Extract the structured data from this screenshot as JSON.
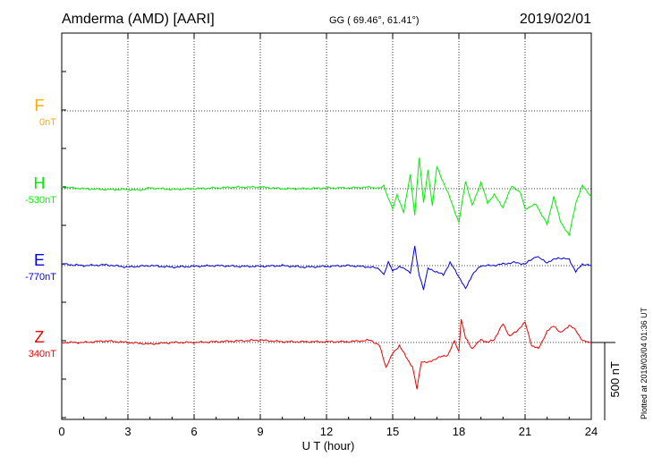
{
  "header": {
    "station": "Amderma (AMD)  [AARI]",
    "coords": "GG ( 69.46°,  61.41°)",
    "date": "2019/02/01"
  },
  "side_note": "Plotted at 2019/03/04 01:36 UT",
  "chart_data": {
    "type": "line",
    "title": "Amderma (AMD)  [AARI]",
    "xlabel": "U T (hour)",
    "xlim": [
      0,
      24
    ],
    "xticks": [
      "0",
      "3",
      "6",
      "9",
      "12",
      "15",
      "18",
      "21",
      "24"
    ],
    "scale_bar_label": "500 nT",
    "scale_bar_nT": 500,
    "grid": true,
    "colors": {
      "F": "#ffaa00",
      "H": "#00ee00",
      "E": "#0000dd",
      "Z": "#ee0000"
    },
    "series": [
      {
        "name": "F",
        "baseline": "0nT",
        "x": [],
        "values": []
      },
      {
        "name": "H",
        "baseline": "-530nT",
        "x": [
          0,
          1,
          2,
          3,
          3.5,
          4,
          5,
          6,
          7,
          8,
          9,
          10,
          11,
          12,
          13,
          14,
          14.4,
          14.6,
          14.8,
          15,
          15.2,
          15.5,
          15.8,
          16,
          16.2,
          16.4,
          16.6,
          16.8,
          17,
          17.3,
          17.6,
          18,
          18.3,
          18.6,
          19,
          19.3,
          19.6,
          20,
          20.4,
          20.8,
          21,
          21.5,
          22,
          22.3,
          22.6,
          23,
          23.3,
          23.6,
          24
        ],
        "values": [
          10,
          0,
          -5,
          -5,
          -10,
          5,
          -5,
          0,
          5,
          10,
          10,
          0,
          0,
          5,
          5,
          10,
          0,
          20,
          -60,
          -130,
          -40,
          -150,
          90,
          -170,
          200,
          -90,
          120,
          -110,
          140,
          40,
          -60,
          -220,
          50,
          -110,
          40,
          -90,
          -40,
          -120,
          20,
          -30,
          -130,
          -100,
          -230,
          -50,
          -210,
          -300,
          -90,
          20,
          -50
        ]
      },
      {
        "name": "E",
        "baseline": "-770nT",
        "x": [
          0,
          1,
          2,
          3,
          4,
          5,
          6,
          7,
          8,
          9,
          10,
          11,
          12,
          13,
          14,
          14.4,
          14.6,
          14.8,
          15,
          15.3,
          15.6,
          15.8,
          16,
          16.2,
          16.4,
          16.6,
          17,
          17.3,
          17.6,
          18,
          18.3,
          18.6,
          19,
          19.5,
          20,
          20.5,
          21,
          21.5,
          22,
          22.5,
          23,
          23.3,
          23.6,
          24
        ],
        "values": [
          10,
          0,
          5,
          -10,
          0,
          -10,
          -5,
          0,
          -5,
          -5,
          0,
          -10,
          -5,
          0,
          -10,
          -20,
          -60,
          20,
          -30,
          -10,
          -20,
          -50,
          120,
          -60,
          -150,
          -20,
          -40,
          -60,
          20,
          -70,
          -150,
          -60,
          0,
          0,
          10,
          20,
          10,
          60,
          20,
          50,
          40,
          -40,
          10,
          0
        ]
      },
      {
        "name": "Z",
        "baseline": "340nT",
        "x": [
          0,
          1,
          2,
          3,
          4,
          5,
          6,
          7,
          8,
          9,
          10,
          11,
          12,
          13,
          14,
          14.4,
          14.7,
          15,
          15.3,
          15.6,
          15.9,
          16.1,
          16.3,
          16.6,
          17,
          17.5,
          17.8,
          18,
          18.1,
          18.3,
          18.6,
          19,
          19.3,
          19.6,
          20,
          20.3,
          20.6,
          21,
          21.3,
          21.6,
          22,
          22.3,
          22.6,
          23,
          23.3,
          23.6,
          24
        ],
        "values": [
          0,
          0,
          10,
          0,
          -10,
          0,
          0,
          5,
          10,
          15,
          5,
          5,
          5,
          5,
          15,
          -20,
          -160,
          -70,
          -20,
          -90,
          -160,
          -300,
          -120,
          -130,
          -100,
          -80,
          10,
          -60,
          150,
          30,
          -40,
          20,
          0,
          20,
          120,
          40,
          70,
          130,
          -20,
          -40,
          70,
          110,
          60,
          110,
          80,
          10,
          0
        ]
      }
    ]
  }
}
